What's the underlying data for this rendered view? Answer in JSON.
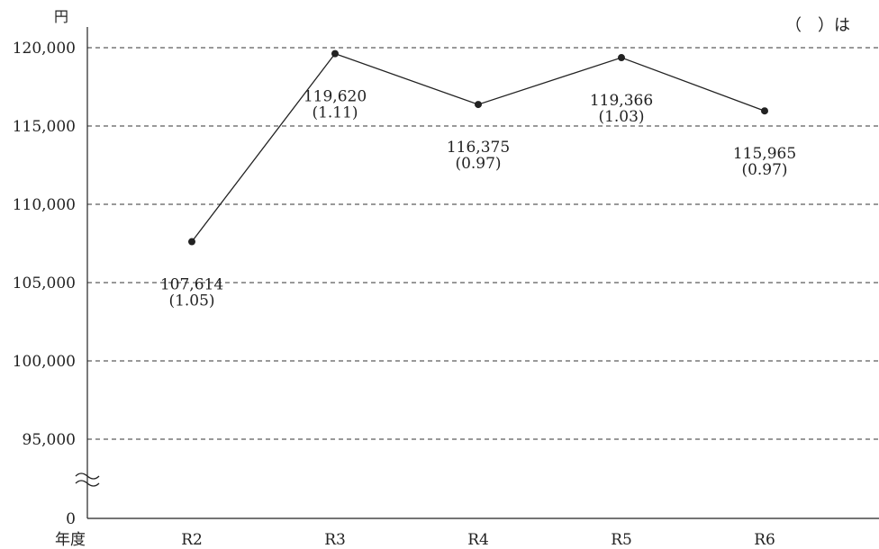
{
  "chart_data": {
    "type": "line",
    "unit_label": "円",
    "x_axis_title": "年度",
    "note": "（　）は",
    "categories": [
      "R2",
      "R3",
      "R4",
      "R5",
      "R6"
    ],
    "values": [
      107614,
      119620,
      116375,
      119366,
      115965
    ],
    "value_labels": [
      "107,614",
      "119,620",
      "116,375",
      "119,366",
      "115,965"
    ],
    "ratio_labels": [
      "(1.05)",
      "(1.11)",
      "(0.97)",
      "(1.03)",
      "(0.97)"
    ],
    "y_ticks": [
      {
        "value": 120000,
        "label": "120,000"
      },
      {
        "value": 115000,
        "label": "115,000"
      },
      {
        "value": 110000,
        "label": "110,000"
      },
      {
        "value": 105000,
        "label": "105,000"
      },
      {
        "value": 100000,
        "label": "100,000"
      },
      {
        "value": 95000,
        "label": "95,000"
      },
      {
        "value": 0,
        "label": "0"
      }
    ],
    "axis_break": true,
    "grid": "dashed horizontal",
    "ylim": [
      95000,
      120000
    ],
    "colors": {
      "line": "#222222",
      "grid": "#333333"
    }
  }
}
